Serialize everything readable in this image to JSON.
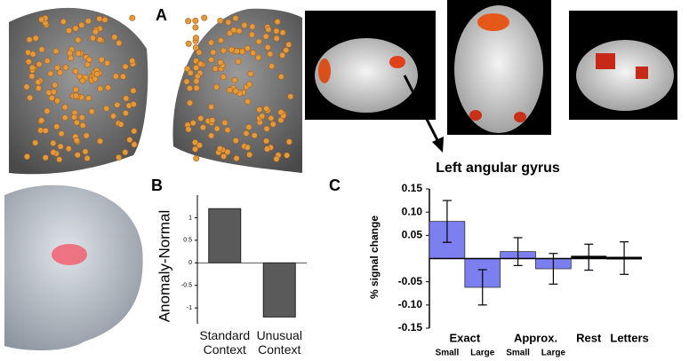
{
  "panel_labels": [
    "A",
    "B",
    "C"
  ],
  "chart_data": [
    {
      "type": "bar",
      "ylabel": "Anomaly-Normal",
      "categories": [
        "Standard Context",
        "Unusual Context"
      ],
      "values": [
        1.2,
        -1.2
      ],
      "color": "#5a5a5a",
      "ylim": [
        -1.35,
        1.5
      ],
      "yticks": [
        1,
        0.5,
        0,
        -0.5,
        -1
      ]
    },
    {
      "type": "bar",
      "title": "Left angular gyrus",
      "ylabel": "% signal change",
      "groups": [
        "Exact",
        "Approx.",
        "Rest",
        "Letters"
      ],
      "categories": [
        "Small",
        "Large",
        "Small",
        "Large",
        null,
        null
      ],
      "values": [
        0.08,
        -0.062,
        0.015,
        -0.022,
        0.003,
        0.001
      ],
      "errors": [
        0.045,
        0.038,
        0.03,
        0.033,
        0.028,
        0.035
      ],
      "colors": [
        "#7b7ff0",
        "#7b7ff0",
        "#7b7ff0",
        "#7b7ff0",
        "#000000",
        "#000000"
      ],
      "ylim": [
        -0.15,
        0.15
      ],
      "yticks": [
        0.15,
        {
          "value": 0.1,
          "label": "0.10"
        },
        0.05,
        -0.05,
        {
          "value": -0.1,
          "label": "-0.10"
        },
        -0.15
      ]
    }
  ]
}
